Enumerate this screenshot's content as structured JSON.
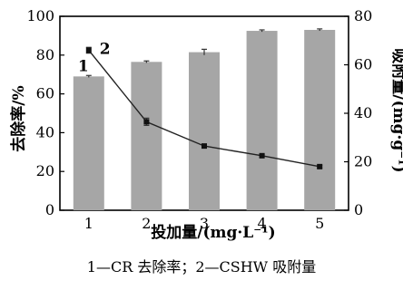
{
  "chart_data": {
    "type": "bar+line",
    "categories": [
      "1",
      "2",
      "3",
      "4",
      "5"
    ],
    "xlabel": "投加量/(mg·L⁻¹)",
    "series": [
      {
        "label": "1",
        "axis": "left",
        "type": "bar",
        "values": [
          69,
          76.5,
          81.5,
          92.5,
          93
        ],
        "errors": [
          0.5,
          0.5,
          1.5,
          0.5,
          0.5
        ]
      },
      {
        "label": "2",
        "axis": "right",
        "type": "line",
        "values": [
          66,
          36.5,
          26.5,
          22.5,
          18
        ],
        "errors": [
          1.2,
          1.5,
          0.6,
          0.5,
          0.5
        ]
      }
    ],
    "y_left": {
      "label": "去除率/%",
      "range": [
        0,
        100
      ],
      "ticks": [
        "0",
        "20",
        "40",
        "60",
        "80",
        "100"
      ]
    },
    "y_right": {
      "label": "吸附量/(mg·g⁻¹)",
      "range": [
        0,
        80
      ],
      "ticks": [
        "0",
        "20",
        "40",
        "60",
        "80"
      ]
    },
    "caption": "1—CR 去除率；2—CSHW 吸附量",
    "colors": {
      "bar": "#a6a6a6",
      "line": "#222222"
    }
  }
}
